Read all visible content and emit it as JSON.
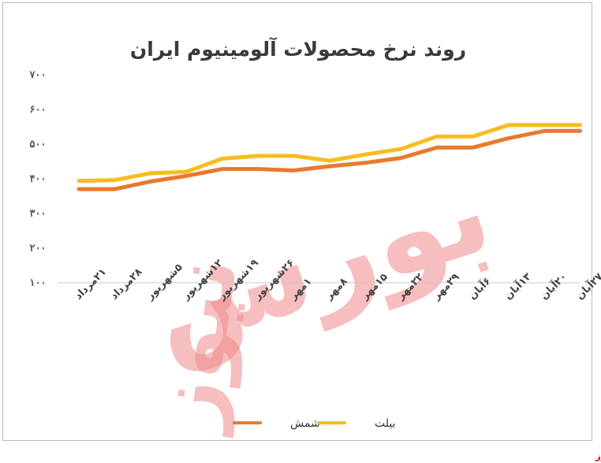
{
  "chart_data": {
    "type": "line",
    "title": "روند نرخ محصولات آلومینیوم ایران",
    "categories": [
      "۲۱مرداد",
      "۲۸مرداد",
      "۵شهریور",
      "۱۲شهریور",
      "۱۹شهریور",
      "۲۶شهریور",
      "۱مهر",
      "۸مهر",
      "۱۵مهر",
      "۲۲مهر",
      "۲۹مهر",
      "۶آبان",
      "۱۳آبان",
      "۲۰آبان",
      "۲۷آبان"
    ],
    "y_ticks": [
      "۷۰۰",
      "۶۰۰",
      "۵۰۰",
      "۴۰۰",
      "۳۰۰",
      "۲۰۰",
      "۱۰۰"
    ],
    "ylim": [
      100,
      700
    ],
    "series": [
      {
        "name": "شمش",
        "color": "#E8792E",
        "values": [
          370,
          370,
          392,
          408,
          428,
          428,
          424,
          436,
          446,
          460,
          490,
          490,
          517,
          538,
          538
        ]
      },
      {
        "name": "بیلت",
        "color": "#F7BD1E",
        "values": [
          394,
          396,
          416,
          420,
          458,
          466,
          466,
          452,
          470,
          486,
          522,
          522,
          555,
          555,
          555
        ]
      }
    ],
    "legend_position": "bottom",
    "grid": false
  },
  "watermark": {
    "line1": "بورس",
    "line2": "نیوز"
  },
  "source_label": "بورس نیوز"
}
